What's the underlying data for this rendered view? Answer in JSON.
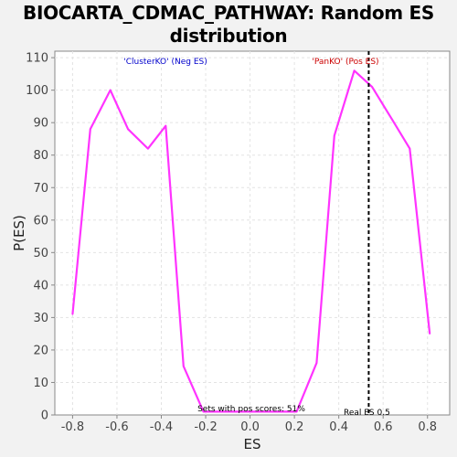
{
  "chart_data": {
    "type": "line",
    "title": "BIOCARTA_CDMAC_PATHWAY: Random ES distribution",
    "xlabel": "ES",
    "ylabel": "P(ES)",
    "xlim": [
      -0.88,
      0.9
    ],
    "ylim": [
      0,
      112
    ],
    "x_ticks": [
      -0.8,
      -0.6,
      -0.4,
      -0.2,
      0.0,
      0.2,
      0.4,
      0.6,
      0.8
    ],
    "x_tick_labels": [
      "-0.8",
      "-0.6",
      "-0.4",
      "-0.2",
      "0.0",
      "0.2",
      "0.4",
      "0.6",
      "0.8"
    ],
    "y_ticks": [
      0,
      10,
      20,
      30,
      40,
      50,
      60,
      70,
      80,
      90,
      100,
      110
    ],
    "y_tick_labels": [
      "0",
      "10",
      "20",
      "30",
      "40",
      "50",
      "60",
      "70",
      "80",
      "90",
      "100",
      "110"
    ],
    "grid": true,
    "series": [
      {
        "color": "#ff33ff",
        "x": [
          -0.8,
          -0.72,
          -0.63,
          -0.55,
          -0.46,
          -0.38,
          -0.3,
          -0.21,
          -0.13,
          -0.04,
          0.04,
          0.13,
          0.21,
          0.3,
          0.38,
          0.47,
          0.55,
          0.64,
          0.72,
          0.81
        ],
        "y": [
          31,
          88,
          100,
          88,
          82,
          89,
          15,
          1,
          1,
          1,
          1,
          1,
          1,
          16,
          86,
          106,
          101,
          91,
          82,
          25
        ]
      }
    ],
    "annotations": {
      "neg_label": "'ClusterKO' (Neg ES)",
      "pos_label": "'PanKO' (Pos ES)",
      "pos_scores": "Sets with pos scores: 51%",
      "real_es_label": "Real ES 0.5",
      "real_es_value": 0.535
    },
    "colors": {
      "neg_label": "#0000cc",
      "pos_label": "#cc0000",
      "series_line": "#ff33ff"
    }
  }
}
